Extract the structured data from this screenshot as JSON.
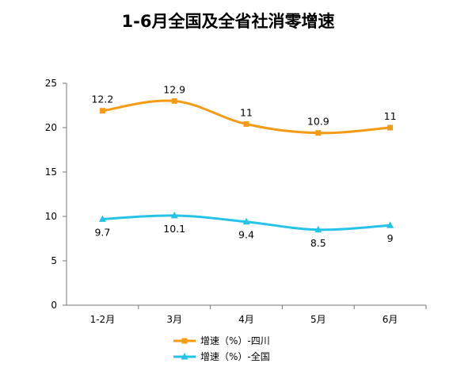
{
  "chart_data": {
    "type": "line",
    "title": "1-6月全国及全省社消零增速",
    "xlabel": "",
    "ylabel": "",
    "categories": [
      "1-2月",
      "3月",
      "4月",
      "5月",
      "6月"
    ],
    "ylim": [
      0,
      25
    ],
    "yticks": [
      0,
      5,
      10,
      15,
      20,
      25
    ],
    "grid": false,
    "legend_position": "bottom",
    "series": [
      {
        "name": "增速（%）-四川",
        "values": [
          21.9,
          23.0,
          20.4,
          19.4,
          20.0
        ],
        "labels": [
          "12.2",
          "12.9",
          "11",
          "10.9",
          "11"
        ],
        "color": "#F59A14",
        "marker": "square",
        "label_position": "above"
      },
      {
        "name": "增速（%）-全国",
        "values": [
          9.7,
          10.1,
          9.4,
          8.5,
          9.0
        ],
        "labels": [
          "9.7",
          "10.1",
          "9.4",
          "8.5",
          "9"
        ],
        "color": "#25C3E8",
        "marker": "triangle",
        "label_position": "below"
      }
    ]
  }
}
